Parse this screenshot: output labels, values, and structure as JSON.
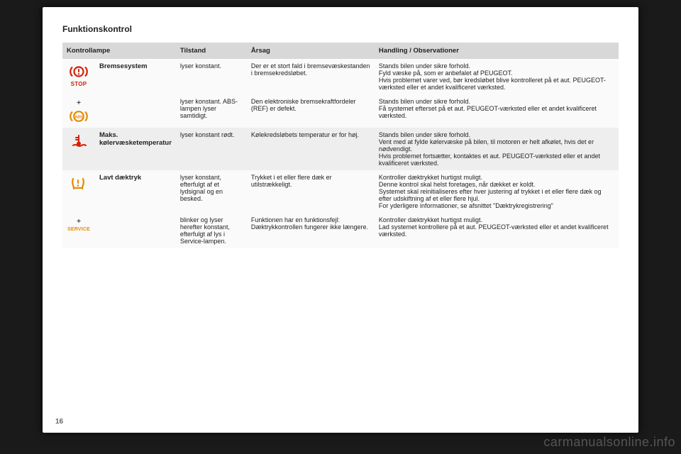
{
  "section_title": "Funktionskontrol",
  "page_number": "16",
  "watermark": "carmanualsonline.info",
  "columns": {
    "lamp": "Kontrollampe",
    "state": "Tilstand",
    "cause": "Årsag",
    "action": "Handling / Observationer"
  },
  "colors": {
    "red": "#d81e05",
    "amber": "#e78c00",
    "header_bg": "#d8d8d8",
    "row_a": "#fafafa",
    "row_b": "#eeeeee"
  },
  "rows": [
    {
      "icon": {
        "type": "brake",
        "stop": true
      },
      "name": "Bremsesystem",
      "name_rowspan": 2,
      "state": "lyser konstant.",
      "cause": "Der er et stort fald i bremsevæskestanden i bremsekredsløbet.",
      "action": "Stands bilen under sikre forhold.\nFyld væske på, som er anbefalet af PEUGEOT.\nHvis problemet varer ved, bør kredsløbet blive kontrolleret på et aut. PEUGEOT-værksted eller et andet kvalificeret værksted.",
      "bg": "a"
    },
    {
      "icon": {
        "type": "abs_plus"
      },
      "state": "lyser konstant. ABS-lampen lyser samtidigt.",
      "cause": "Den elektroniske bremsekraftfordeler (REF) er defekt.",
      "action": "Stands bilen under sikre forhold.\nFå systemet efterset på et aut. PEUGEOT-værksted eller et andet kvalificeret værksted.",
      "bg": "a"
    },
    {
      "icon": {
        "type": "temp"
      },
      "name": "Maks. kølervæsketemperatur",
      "state": "lyser konstant rødt.",
      "cause": "Kølekredsløbets temperatur er for høj.",
      "action": "Stands bilen under sikre forhold.\nVent med at fylde kølervæske på bilen, til motoren er helt afkølet, hvis det er nødvendigt.\nHvis problemet fortsætter, kontaktes et aut. PEUGEOT-værksted eller et andet kvalificeret værksted.",
      "bg": "b"
    },
    {
      "icon": {
        "type": "tyre"
      },
      "name": "Lavt dæktryk",
      "name_rowspan": 2,
      "state": "lyser konstant, efterfulgt af et lydsignal og en besked.",
      "cause": "Trykket i et eller flere dæk er utilstrækkeligt.",
      "action": "Kontroller dæktrykket hurtigst muligt.\nDenne kontrol skal helst foretages, når dækket er koldt.\nSystemet skal reinitialiseres efter hver justering af trykket i et eller flere dæk og efter udskiftning af et eller flere hjul.\nFor yderligere informationer, se afsnittet \"Dæktrykregistrering\"",
      "bg": "a"
    },
    {
      "icon": {
        "type": "service_plus"
      },
      "state": "blinker og lyser herefter konstant, efterfulgt af lys i Service-lampen.",
      "cause": "Funktionen har en funktionsfejl: Dæktrykkontrollen fungerer ikke længere.",
      "action": "Kontroller dæktrykket hurtigst muligt.\nLad systemet kontrollere på et aut. PEUGEOT-værksted eller et andet kvalificeret værksted.",
      "bg": "a"
    }
  ]
}
